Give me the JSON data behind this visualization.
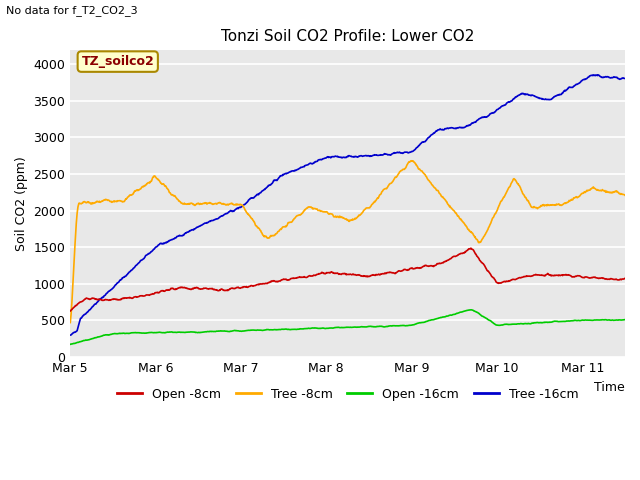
{
  "title": "Tonzi Soil CO2 Profile: Lower CO2",
  "subtitle": "No data for f_T2_CO2_3",
  "ylabel": "Soil CO2 (ppm)",
  "xlabel": "Time",
  "legend_label": "TZ_soilco2",
  "ylim": [
    0,
    4200
  ],
  "yticks": [
    0,
    500,
    1000,
    1500,
    2000,
    2500,
    3000,
    3500,
    4000
  ],
  "xtick_labels": [
    "Mar 5",
    "Mar 6",
    "Mar 7",
    "Mar 8",
    "Mar 9",
    "Mar 10",
    "Mar 11"
  ],
  "bg_color": "#e8e8e8",
  "plot_bg_color": "#e8e8e8",
  "colors": {
    "open_8cm": "#cc0000",
    "tree_8cm": "#ffaa00",
    "open_16cm": "#00cc00",
    "tree_16cm": "#0000cc"
  },
  "legend_entries": [
    "Open -8cm",
    "Tree -8cm",
    "Open -16cm",
    "Tree -16cm"
  ]
}
